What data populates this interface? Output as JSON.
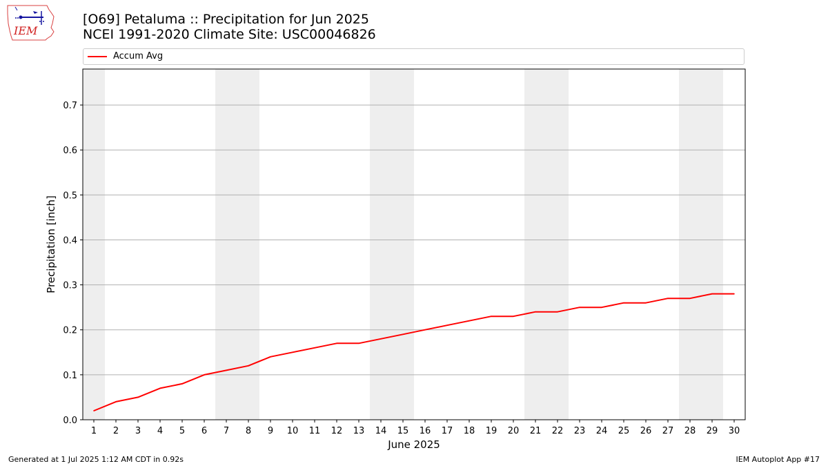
{
  "header": {
    "title_line1": "[O69] Petaluma :: Precipitation for Jun 2025",
    "title_line2": "NCEI 1991-2020 Climate Site: USC00046826"
  },
  "logo": {
    "text": "IEM",
    "icon": "iem-iowa-logo"
  },
  "footer": {
    "generated": "Generated at 1 Jul 2025 1:12 AM CDT in 0.92s",
    "app": "IEM Autoplot App #17"
  },
  "colors": {
    "line": "#ff0000",
    "weekend_band": "#eeeeee",
    "grid": "#b0b0b0"
  },
  "chart_data": {
    "type": "line",
    "xlabel": "June 2025",
    "ylabel": "Precipitation [inch]",
    "x": [
      1,
      2,
      3,
      4,
      5,
      6,
      7,
      8,
      9,
      10,
      11,
      12,
      13,
      14,
      15,
      16,
      17,
      18,
      19,
      20,
      21,
      22,
      23,
      24,
      25,
      26,
      27,
      28,
      29,
      30
    ],
    "x_tick_labels": [
      "1",
      "2",
      "3",
      "4",
      "5",
      "6",
      "7",
      "8",
      "9",
      "10",
      "11",
      "12",
      "13",
      "14",
      "15",
      "16",
      "17",
      "18",
      "19",
      "20",
      "21",
      "22",
      "23",
      "24",
      "25",
      "26",
      "27",
      "28",
      "29",
      "30"
    ],
    "xlim": [
      0.5,
      30.5
    ],
    "ylim": [
      0,
      0.78
    ],
    "y_ticks": [
      0.0,
      0.1,
      0.2,
      0.3,
      0.4,
      0.5,
      0.6,
      0.7
    ],
    "y_tick_labels": [
      "0.0",
      "0.1",
      "0.2",
      "0.3",
      "0.4",
      "0.5",
      "0.6",
      "0.7"
    ],
    "grid": "horizontal",
    "legend_position": "top, above plot",
    "weekend_bands": [
      [
        0.5,
        1.5
      ],
      [
        6.5,
        8.5
      ],
      [
        13.5,
        15.5
      ],
      [
        20.5,
        22.5
      ],
      [
        27.5,
        29.5
      ]
    ],
    "series": [
      {
        "name": "Accum Avg",
        "color": "#ff0000",
        "values": [
          0.02,
          0.04,
          0.05,
          0.07,
          0.08,
          0.1,
          0.11,
          0.12,
          0.14,
          0.15,
          0.16,
          0.17,
          0.17,
          0.18,
          0.19,
          0.2,
          0.21,
          0.22,
          0.23,
          0.23,
          0.24,
          0.24,
          0.25,
          0.25,
          0.26,
          0.26,
          0.27,
          0.27,
          0.28,
          0.28
        ]
      }
    ]
  }
}
